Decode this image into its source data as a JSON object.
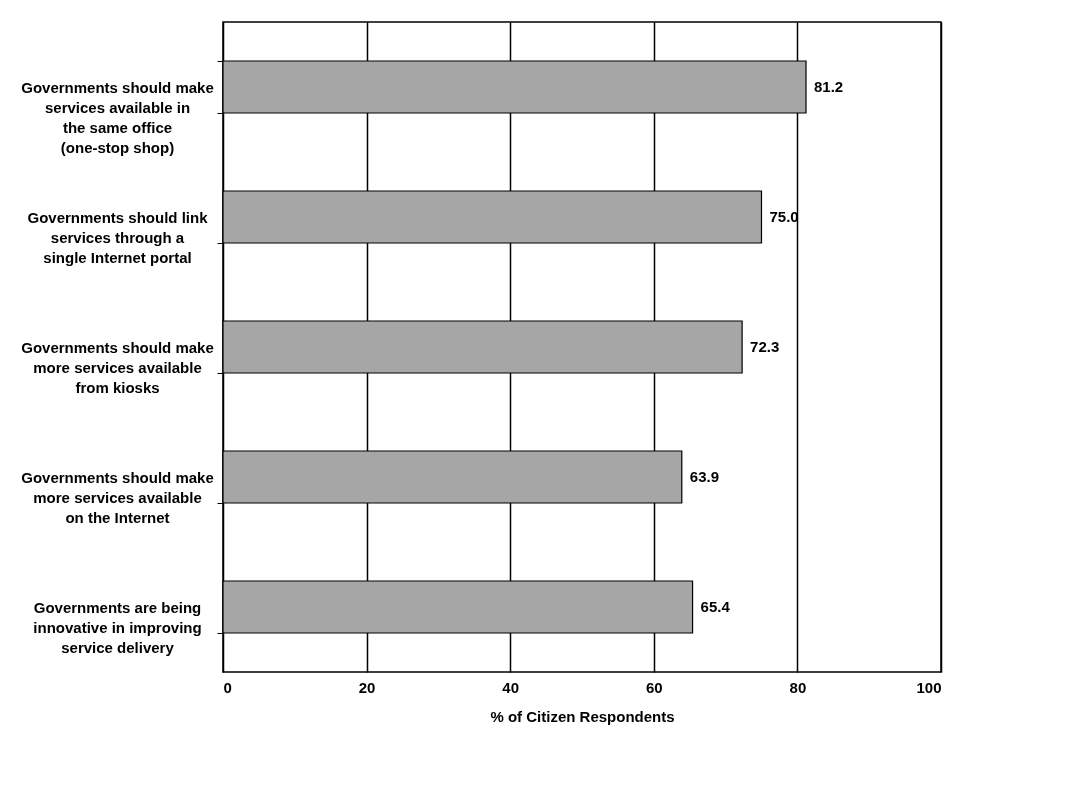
{
  "chart_data": {
    "type": "bar",
    "orientation": "horizontal",
    "xlabel": "% of Citizen Respondents",
    "categories": [
      "Governments should make services available in the same office  (one-stop shop)",
      "Governments should link services through a single Internet portal",
      "Governments should make more services available from kiosks",
      "Governments should make more services available on the Internet",
      "Governments are being innovative in improving service delivery"
    ],
    "values": [
      81.2,
      75.0,
      72.3,
      63.9,
      65.4
    ],
    "color": "#a6a6a6",
    "xlim": [
      0,
      100
    ],
    "xticks": [
      0,
      20,
      40,
      60,
      80,
      100
    ],
    "value_labels": [
      "81.2",
      "75.0",
      "72.3",
      "63.9",
      "65.4"
    ],
    "grid": "x"
  }
}
